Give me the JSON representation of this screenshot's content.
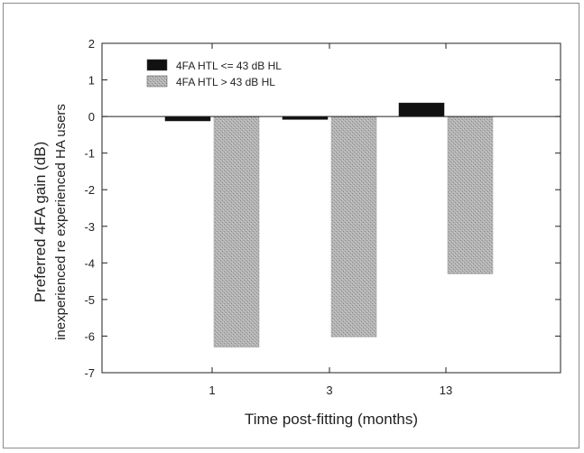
{
  "chart_data": {
    "type": "bar",
    "title": "",
    "xlabel": "Time post-fitting (months)",
    "ylabel_line1": "Preferred 4FA gain (dB)",
    "ylabel_line2": "inexperienced re experienced HA users",
    "categories": [
      "1",
      "3",
      "13"
    ],
    "ylim": [
      -7,
      2
    ],
    "yticks": [
      2,
      1,
      0,
      -1,
      -2,
      -3,
      -4,
      -5,
      -6,
      -7
    ],
    "grid": false,
    "legend_position": "top-left",
    "series": [
      {
        "name": "4FA HTL <= 43 dB HL",
        "color": "#111111",
        "pattern": "solid",
        "values": [
          -0.12,
          -0.08,
          0.37
        ]
      },
      {
        "name": "4FA HTL > 43 dB HL",
        "color": "#a8a8a8",
        "pattern": "stipple",
        "values": [
          -6.3,
          -6.02,
          -4.3
        ]
      }
    ]
  }
}
